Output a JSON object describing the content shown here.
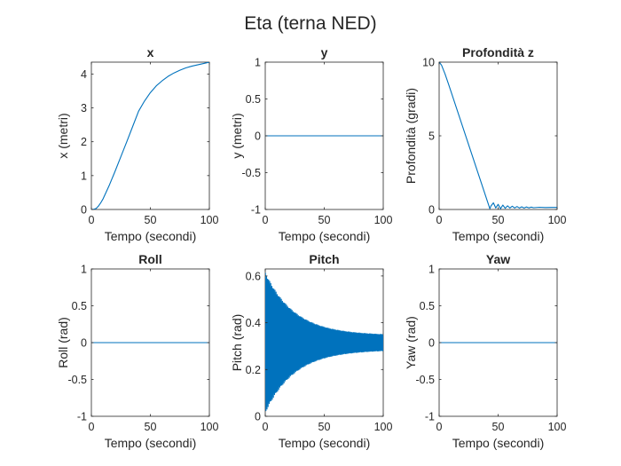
{
  "figure": {
    "title": "Eta (terna NED)"
  },
  "chart_data": [
    {
      "type": "line",
      "title": "x",
      "xlabel": "Tempo (secondi)",
      "ylabel": "x (metri)",
      "xlim": [
        0,
        100
      ],
      "ylim": [
        0,
        4.35
      ],
      "xticks": [
        0,
        50,
        100
      ],
      "yticks": [
        0,
        1,
        2,
        3,
        4
      ],
      "series": [
        {
          "x": [
            0,
            2,
            4,
            6,
            8,
            10,
            15,
            20,
            25,
            30,
            35,
            40,
            45,
            50,
            55,
            60,
            65,
            70,
            75,
            80,
            85,
            90,
            95,
            100
          ],
          "y": [
            0,
            0.005,
            0.03,
            0.1,
            0.2,
            0.32,
            0.7,
            1.12,
            1.56,
            2.0,
            2.45,
            2.9,
            3.2,
            3.45,
            3.65,
            3.8,
            3.93,
            4.03,
            4.11,
            4.18,
            4.23,
            4.27,
            4.31,
            4.35
          ]
        }
      ]
    },
    {
      "type": "line",
      "title": "y",
      "xlabel": "Tempo (secondi)",
      "ylabel": "y (metri)",
      "xlim": [
        0,
        100
      ],
      "ylim": [
        -1,
        1
      ],
      "xticks": [
        0,
        50,
        100
      ],
      "yticks": [
        -1,
        -0.5,
        0,
        0.5,
        1
      ],
      "series": [
        {
          "x": [
            0,
            100
          ],
          "y": [
            0,
            0
          ]
        }
      ]
    },
    {
      "type": "line",
      "title": "Profondità z",
      "xlabel": "Tempo (secondi)",
      "ylabel": "Profondità (gradi)",
      "xlim": [
        0,
        100
      ],
      "ylim": [
        0,
        10
      ],
      "xticks": [
        0,
        50,
        100
      ],
      "yticks": [
        0,
        5,
        10
      ],
      "series": [
        {
          "x": [
            0,
            2,
            5,
            8,
            43,
            44,
            46,
            48,
            50,
            52,
            54,
            56,
            58,
            60,
            62,
            64,
            66,
            68,
            70,
            72,
            74,
            76,
            78,
            80,
            85,
            90,
            95,
            100
          ],
          "y": [
            10,
            9.8,
            9.2,
            8.5,
            0.05,
            0.25,
            0.45,
            0.1,
            0.35,
            0.05,
            0.3,
            0.08,
            0.25,
            0.1,
            0.22,
            0.1,
            0.2,
            0.1,
            0.18,
            0.1,
            0.17,
            0.11,
            0.16,
            0.12,
            0.15,
            0.13,
            0.14,
            0.14
          ]
        }
      ]
    },
    {
      "type": "line",
      "title": "Roll",
      "xlabel": "Tempo (secondi)",
      "ylabel": "Roll (rad)",
      "xlim": [
        0,
        100
      ],
      "ylim": [
        -1,
        1
      ],
      "xticks": [
        0,
        50,
        100
      ],
      "yticks": [
        -1,
        -0.5,
        0,
        0.5,
        1
      ],
      "series": [
        {
          "x": [
            0,
            100
          ],
          "y": [
            0,
            0
          ]
        }
      ]
    },
    {
      "type": "line",
      "title": "Pitch",
      "xlabel": "Tempo (secondi)",
      "ylabel": "Pitch (rad)",
      "xlim": [
        0,
        100
      ],
      "ylim": [
        0,
        0.63
      ],
      "xticks": [
        0,
        50,
        100
      ],
      "yticks": [
        0,
        0.2,
        0.4,
        0.6
      ],
      "series": [
        {
          "oscillation": {
            "center": 0.315,
            "amplitude_start": 0.3,
            "amplitude_end": 0.03,
            "decay_time": 25,
            "period": 0.9
          }
        }
      ]
    },
    {
      "type": "line",
      "title": "Yaw",
      "xlabel": "Tempo (secondi)",
      "ylabel": "Yaw (rad)",
      "xlim": [
        0,
        100
      ],
      "ylim": [
        -1,
        1
      ],
      "xticks": [
        0,
        50,
        100
      ],
      "yticks": [
        -1,
        -0.5,
        0,
        0.5,
        1
      ],
      "series": [
        {
          "x": [
            0,
            100
          ],
          "y": [
            0,
            0
          ]
        }
      ]
    }
  ],
  "colors": {
    "line": "#0072BD",
    "axis": "#262626"
  }
}
